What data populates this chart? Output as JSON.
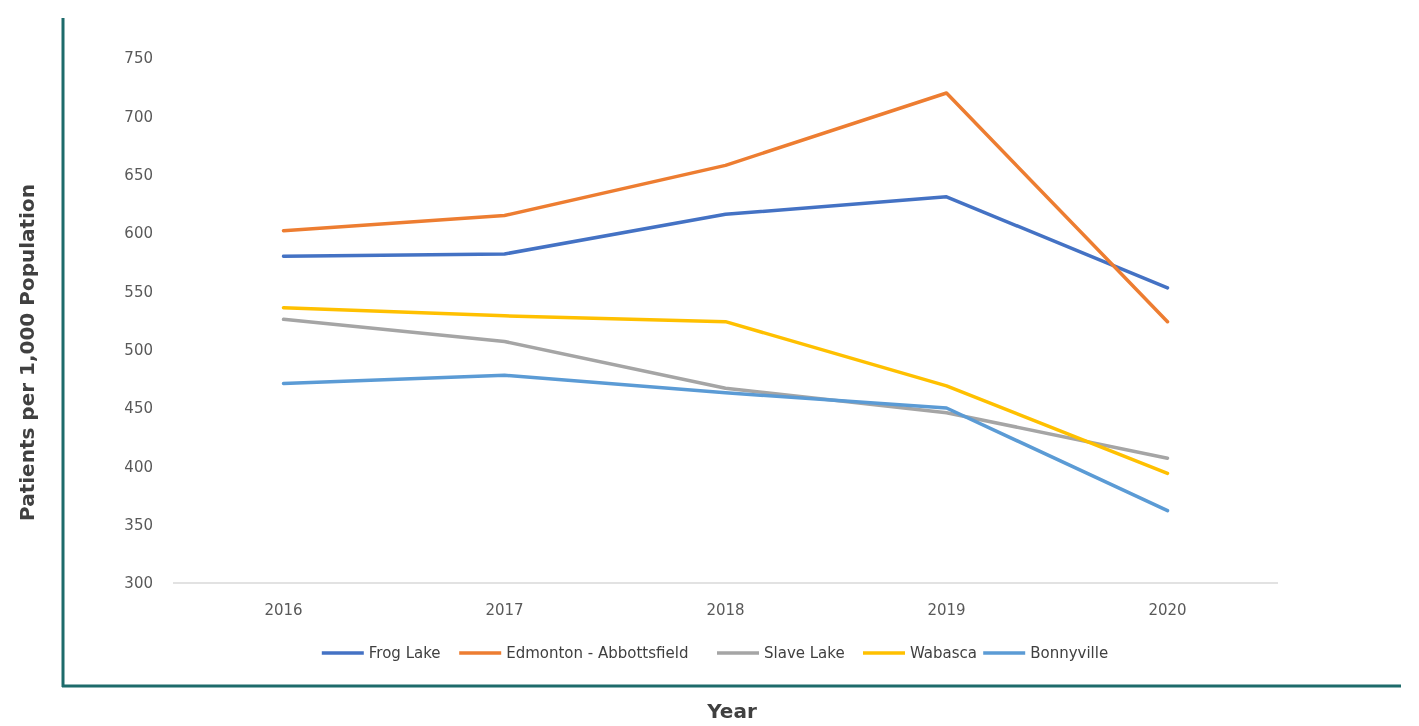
{
  "chart_data": {
    "type": "line",
    "xlabel": "Year",
    "ylabel": "Patients per 1,000 Population",
    "categories": [
      "2016",
      "2017",
      "2018",
      "2019",
      "2020"
    ],
    "series": [
      {
        "name": "Frog Lake",
        "color": "#4472c4",
        "values": [
          580,
          582,
          616,
          631,
          553
        ]
      },
      {
        "name": "Edmonton - Abbottsfield",
        "color": "#ed7d31",
        "values": [
          602,
          615,
          658,
          720,
          524
        ]
      },
      {
        "name": "Slave Lake",
        "color": "#a5a5a5",
        "values": [
          526,
          507,
          467,
          446,
          407
        ]
      },
      {
        "name": "Wabasca",
        "color": "#ffc000",
        "values": [
          536,
          529,
          524,
          469,
          394
        ]
      },
      {
        "name": "Bonnyville",
        "color": "#5b9bd5",
        "values": [
          471,
          478,
          463,
          450,
          362
        ]
      }
    ],
    "ylim": [
      300,
      750
    ],
    "yticks": [
      300,
      350,
      400,
      450,
      500,
      550,
      600,
      650,
      700,
      750
    ],
    "grid": false,
    "legend": "bottom",
    "marker": "none",
    "line_style": "solid"
  }
}
